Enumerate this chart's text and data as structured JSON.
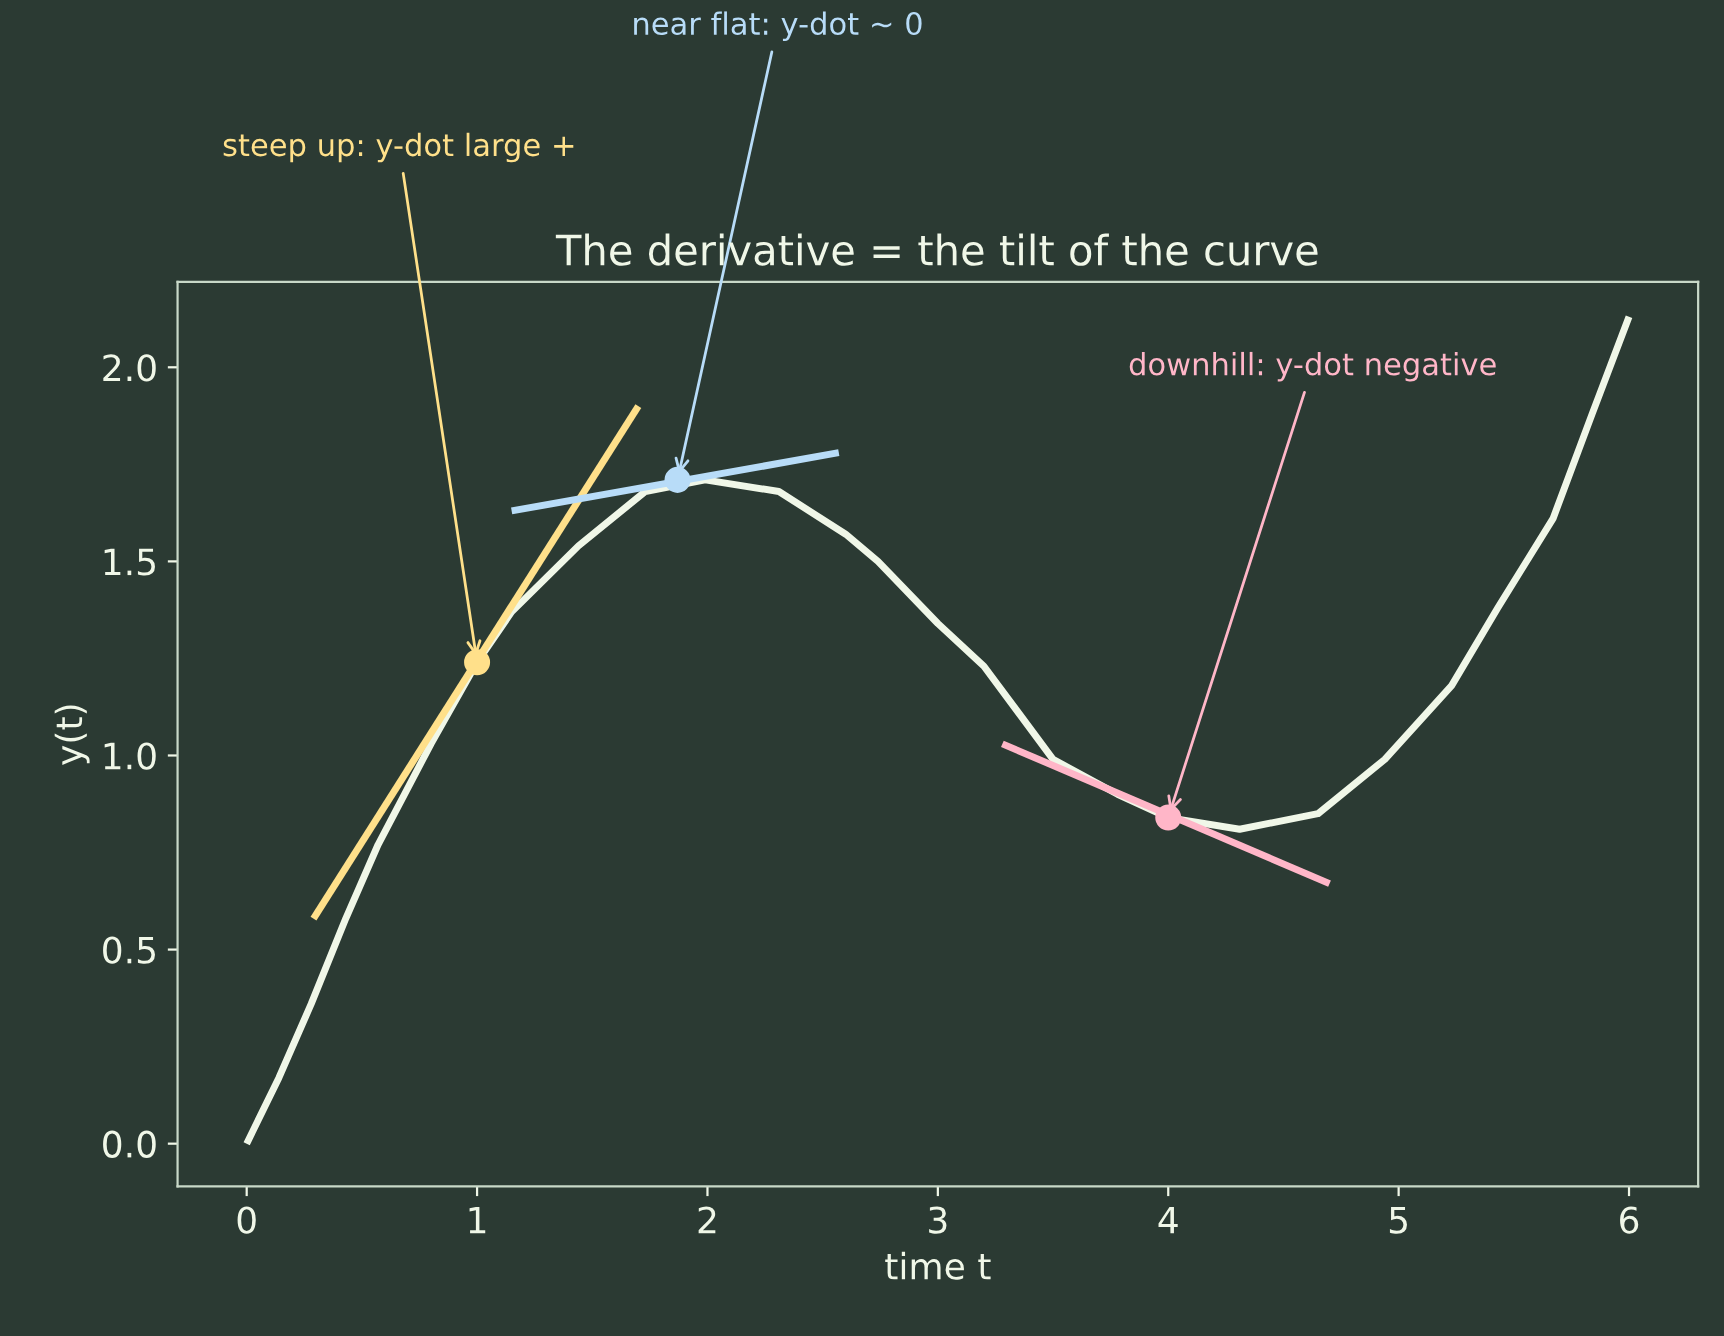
{
  "chart_data": {
    "type": "line",
    "title": "The derivative = the tilt of the curve",
    "xlabel": "time t",
    "ylabel": "y(t)",
    "xlim": [
      -0.3,
      6.3
    ],
    "ylim": [
      -0.11,
      2.22
    ],
    "xticks": [
      0,
      1,
      2,
      3,
      4,
      5,
      6
    ],
    "yticks": [
      {
        "value": 0,
        "label": "0.0"
      },
      {
        "value": 0.5,
        "label": "0.5"
      },
      {
        "value": 1,
        "label": "1.0"
      },
      {
        "value": 1.5,
        "label": "1.5"
      },
      {
        "value": 2,
        "label": "2.0"
      }
    ],
    "grid": false,
    "marker": "none",
    "line_style": "solid",
    "series": [
      {
        "color": "#f0f7e8",
        "x": [
          0,
          0.14,
          0.28,
          0.43,
          0.57,
          0.8,
          1.0,
          1.15,
          1.44,
          1.73,
          1.99,
          2.31,
          2.6,
          2.74,
          3.0,
          3.2,
          3.5,
          3.78,
          4.0,
          4.31,
          4.65,
          4.94,
          5.23,
          5.43,
          5.67,
          5.84,
          6.0
        ],
        "values": [
          0,
          0.17,
          0.36,
          0.58,
          0.77,
          1.03,
          1.24,
          1.37,
          1.54,
          1.68,
          1.71,
          1.68,
          1.57,
          1.5,
          1.34,
          1.23,
          0.99,
          0.9,
          0.84,
          0.81,
          0.85,
          0.99,
          1.18,
          1.38,
          1.61,
          1.88,
          2.13
        ]
      },
      {
        "color": "#ffe08a",
        "x": [
          0.29,
          1.7
        ],
        "values": [
          0.58,
          1.9
        ]
      },
      {
        "color": "#b8dcf8",
        "x": [
          1.15,
          2.57
        ],
        "values": [
          1.63,
          1.78
        ]
      },
      {
        "color": "#ffb6c8",
        "x": [
          3.28,
          4.7
        ],
        "values": [
          1.03,
          0.67
        ]
      },
      {
        "type": "scatter",
        "marker": "circle",
        "color": "#ffe08a",
        "x": [
          1.0
        ],
        "values": [
          1.24
        ]
      },
      {
        "type": "scatter",
        "marker": "circle",
        "color": "#b8dcf8",
        "x": [
          1.87
        ],
        "values": [
          1.71
        ]
      },
      {
        "type": "scatter",
        "marker": "circle",
        "color": "#ffb6c8",
        "x": [
          4.0
        ],
        "values": [
          0.84
        ]
      }
    ],
    "annotations": [
      {
        "text": "steep up: y-dot large +",
        "x": 1.0,
        "y": 1.24
      },
      {
        "text": "near flat: y-dot ~ 0",
        "x": 1.87,
        "y": 1.71
      },
      {
        "text": "downhill: y-dot negative",
        "x": 4.0,
        "y": 0.84
      }
    ]
  }
}
